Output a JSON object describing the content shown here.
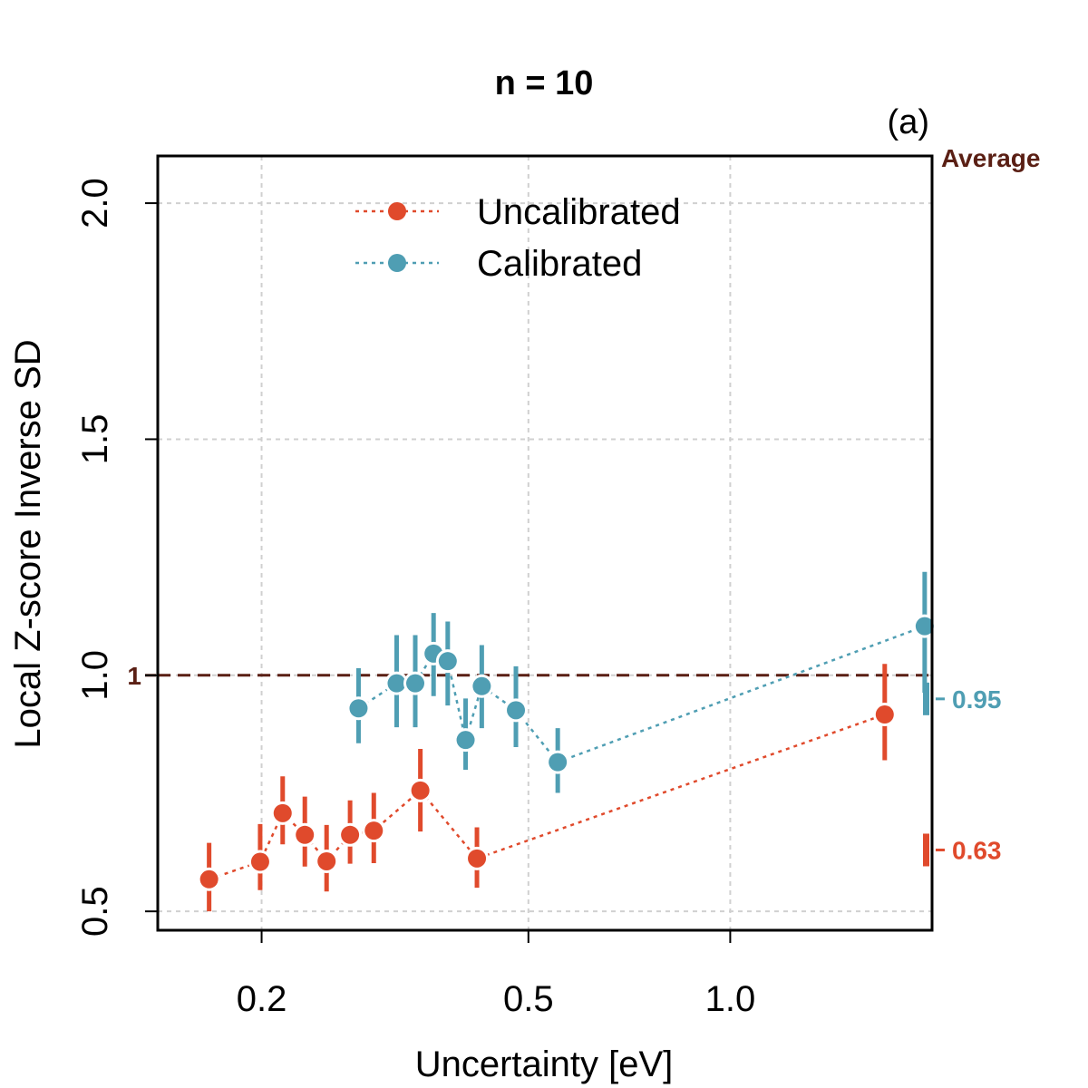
{
  "chart_data": {
    "type": "scatter",
    "title": "n = 10",
    "panel_label": "(a)",
    "xlabel": "Uncertainty [eV]",
    "ylabel": "Local Z-score Inverse SD",
    "x_scale": "log",
    "xlim": [
      0.14,
      2.0
    ],
    "ylim": [
      0.46,
      2.1
    ],
    "x_ticks": [
      0.2,
      0.5,
      1.0
    ],
    "x_tick_labels": [
      "0.2",
      "0.5",
      "1.0"
    ],
    "y_ticks": [
      0.5,
      1.0,
      1.5,
      2.0
    ],
    "y_tick_labels": [
      "0.5",
      "1.0",
      "1.5",
      "2.0"
    ],
    "grid": true,
    "reference_line": {
      "y": 1.0,
      "label": "1",
      "color": "#5a1f14",
      "style": "dashed"
    },
    "averages_header": "Average",
    "legend_position": "top-center",
    "series": [
      {
        "name": "Uncalibrated",
        "color": "#e04a2c",
        "points": [
          {
            "x": 0.167,
            "y": 0.568,
            "lo": 0.5,
            "hi": 0.645
          },
          {
            "x": 0.199,
            "y": 0.605,
            "lo": 0.545,
            "hi": 0.685
          },
          {
            "x": 0.215,
            "y": 0.708,
            "lo": 0.642,
            "hi": 0.786
          },
          {
            "x": 0.232,
            "y": 0.662,
            "lo": 0.595,
            "hi": 0.743
          },
          {
            "x": 0.25,
            "y": 0.606,
            "lo": 0.542,
            "hi": 0.683
          },
          {
            "x": 0.271,
            "y": 0.662,
            "lo": 0.601,
            "hi": 0.735
          },
          {
            "x": 0.294,
            "y": 0.671,
            "lo": 0.602,
            "hi": 0.751
          },
          {
            "x": 0.345,
            "y": 0.756,
            "lo": 0.669,
            "hi": 0.844
          },
          {
            "x": 0.419,
            "y": 0.612,
            "lo": 0.55,
            "hi": 0.678
          },
          {
            "x": 1.7,
            "y": 0.917,
            "lo": 0.82,
            "hi": 1.024
          }
        ],
        "average": 0.63,
        "average_label": "0.63"
      },
      {
        "name": "Calibrated",
        "color": "#4f9eb3",
        "points": [
          {
            "x": 0.279,
            "y": 0.93,
            "lo": 0.856,
            "hi": 1.015
          },
          {
            "x": 0.318,
            "y": 0.983,
            "lo": 0.89,
            "hi": 1.085
          },
          {
            "x": 0.339,
            "y": 0.983,
            "lo": 0.89,
            "hi": 1.085
          },
          {
            "x": 0.361,
            "y": 1.046,
            "lo": 0.956,
            "hi": 1.132
          },
          {
            "x": 0.379,
            "y": 1.03,
            "lo": 0.936,
            "hi": 1.114
          },
          {
            "x": 0.403,
            "y": 0.863,
            "lo": 0.8,
            "hi": 0.951
          },
          {
            "x": 0.426,
            "y": 0.977,
            "lo": 0.888,
            "hi": 1.064
          },
          {
            "x": 0.479,
            "y": 0.926,
            "lo": 0.848,
            "hi": 1.019
          },
          {
            "x": 0.553,
            "y": 0.816,
            "lo": 0.751,
            "hi": 0.888
          },
          {
            "x": 1.95,
            "y": 1.104,
            "lo": 0.963,
            "hi": 1.219
          }
        ],
        "average": 0.95,
        "average_label": "0.95"
      }
    ]
  }
}
